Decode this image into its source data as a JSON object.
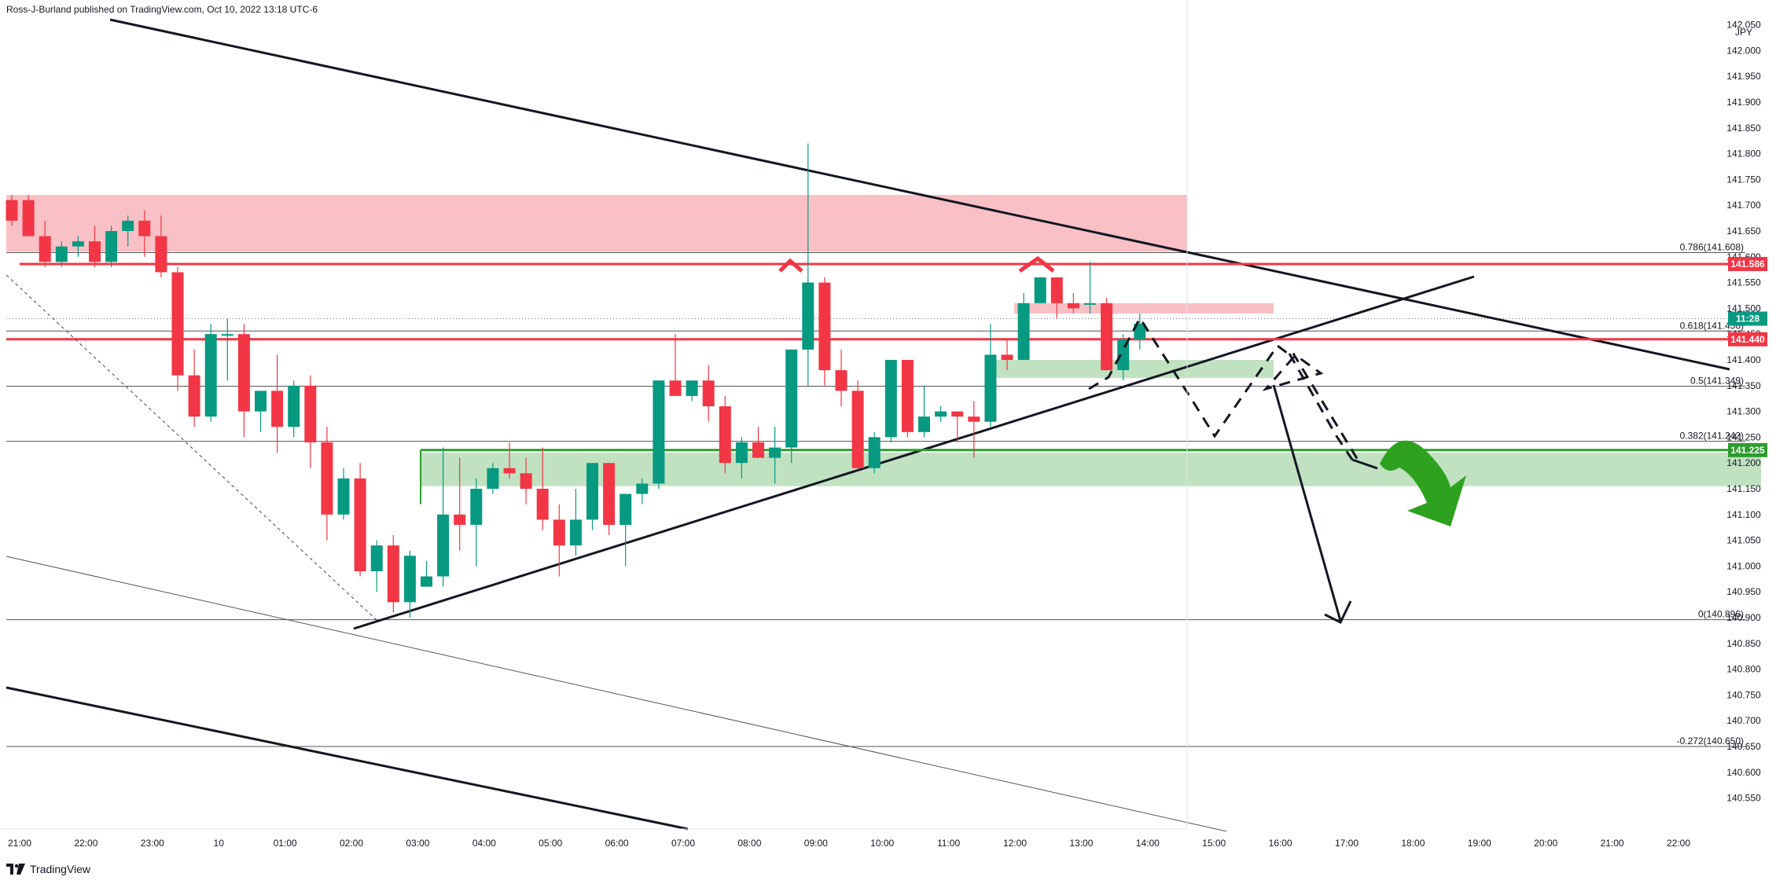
{
  "header": {
    "publisher_line": "Ross-J-Burland published on TradingView.com, Oct 10, 2022 13:18 UTC-6"
  },
  "footer": {
    "brand": "TradingView"
  },
  "chart_data": {
    "type": "candlestick",
    "currency": "JPY",
    "ylim": [
      140.5,
      142.08
    ],
    "y_ticks": [
      142.05,
      142.0,
      141.95,
      141.9,
      141.85,
      141.8,
      141.75,
      141.7,
      141.65,
      141.6,
      141.55,
      141.5,
      141.45,
      141.4,
      141.35,
      141.3,
      141.25,
      141.2,
      141.15,
      141.1,
      141.05,
      141.0,
      140.95,
      140.9,
      140.85,
      140.8,
      140.75,
      140.7,
      140.65,
      140.6,
      140.55
    ],
    "x_labels": [
      "21:00",
      "22:00",
      "23:00",
      "10",
      "01:00",
      "02:00",
      "03:00",
      "04:00",
      "05:00",
      "06:00",
      "07:00",
      "08:00",
      "09:00",
      "10:00",
      "11:00",
      "12:00",
      "13:00",
      "14:00",
      "15:00",
      "16:00",
      "17:00",
      "18:00",
      "19:00",
      "20:00",
      "21:00",
      "22:00"
    ],
    "candle_interval_minutes": 15,
    "candles": [
      [
        141.71,
        141.72,
        141.66,
        141.67
      ],
      [
        141.71,
        141.72,
        141.64,
        141.64
      ],
      [
        141.64,
        141.67,
        141.58,
        141.59
      ],
      [
        141.59,
        141.63,
        141.58,
        141.62
      ],
      [
        141.62,
        141.64,
        141.6,
        141.63
      ],
      [
        141.63,
        141.66,
        141.58,
        141.59
      ],
      [
        141.59,
        141.66,
        141.58,
        141.65
      ],
      [
        141.65,
        141.68,
        141.62,
        141.67
      ],
      [
        141.67,
        141.69,
        141.6,
        141.64
      ],
      [
        141.64,
        141.68,
        141.56,
        141.57
      ],
      [
        141.57,
        141.58,
        141.34,
        141.37
      ],
      [
        141.37,
        141.42,
        141.27,
        141.29
      ],
      [
        141.29,
        141.47,
        141.28,
        141.45
      ],
      [
        141.45,
        141.48,
        141.36,
        141.45
      ],
      [
        141.45,
        141.47,
        141.25,
        141.3
      ],
      [
        141.3,
        141.34,
        141.26,
        141.34
      ],
      [
        141.34,
        141.41,
        141.22,
        141.27
      ],
      [
        141.27,
        141.36,
        141.25,
        141.35
      ],
      [
        141.35,
        141.37,
        141.19,
        141.24
      ],
      [
        141.24,
        141.27,
        141.05,
        141.1
      ],
      [
        141.1,
        141.19,
        141.09,
        141.17
      ],
      [
        141.17,
        141.2,
        140.98,
        140.99
      ],
      [
        140.99,
        141.05,
        140.95,
        141.04
      ],
      [
        141.04,
        141.06,
        140.91,
        140.93
      ],
      [
        140.93,
        141.03,
        140.9,
        141.02
      ],
      [
        140.96,
        141.01,
        140.96,
        140.98
      ],
      [
        140.98,
        141.23,
        140.96,
        141.1
      ],
      [
        141.1,
        141.21,
        141.03,
        141.08
      ],
      [
        141.08,
        141.17,
        141.0,
        141.15
      ],
      [
        141.15,
        141.2,
        141.14,
        141.19
      ],
      [
        141.19,
        141.24,
        141.17,
        141.18
      ],
      [
        141.18,
        141.21,
        141.12,
        141.15
      ],
      [
        141.15,
        141.23,
        141.07,
        141.09
      ],
      [
        141.09,
        141.12,
        140.98,
        141.04
      ],
      [
        141.04,
        141.15,
        141.02,
        141.09
      ],
      [
        141.09,
        141.2,
        141.07,
        141.2
      ],
      [
        141.2,
        141.2,
        141.06,
        141.08
      ],
      [
        141.08,
        141.14,
        141.0,
        141.14
      ],
      [
        141.14,
        141.17,
        141.12,
        141.16
      ],
      [
        141.16,
        141.36,
        141.15,
        141.36
      ],
      [
        141.36,
        141.45,
        141.34,
        141.33
      ],
      [
        141.33,
        141.36,
        141.32,
        141.36
      ],
      [
        141.36,
        141.39,
        141.28,
        141.31
      ],
      [
        141.31,
        141.33,
        141.18,
        141.2
      ],
      [
        141.2,
        141.25,
        141.17,
        141.24
      ],
      [
        141.24,
        141.27,
        141.21,
        141.21
      ],
      [
        141.21,
        141.27,
        141.16,
        141.23
      ],
      [
        141.23,
        141.42,
        141.2,
        141.42
      ],
      [
        141.42,
        141.82,
        141.35,
        141.55
      ],
      [
        141.55,
        141.56,
        141.35,
        141.38
      ],
      [
        141.38,
        141.42,
        141.31,
        141.34
      ],
      [
        141.34,
        141.36,
        141.19,
        141.19
      ],
      [
        141.19,
        141.26,
        141.18,
        141.25
      ],
      [
        141.25,
        141.4,
        141.24,
        141.4
      ],
      [
        141.4,
        141.4,
        141.25,
        141.26
      ],
      [
        141.26,
        141.35,
        141.25,
        141.29
      ],
      [
        141.29,
        141.31,
        141.28,
        141.3
      ],
      [
        141.3,
        141.3,
        141.24,
        141.29
      ],
      [
        141.29,
        141.32,
        141.21,
        141.28
      ],
      [
        141.28,
        141.47,
        141.27,
        141.41
      ],
      [
        141.41,
        141.44,
        141.38,
        141.4
      ],
      [
        141.4,
        141.53,
        141.4,
        141.51
      ],
      [
        141.51,
        141.56,
        141.51,
        141.56
      ],
      [
        141.56,
        141.55,
        141.48,
        141.51
      ],
      [
        141.51,
        141.53,
        141.49,
        141.5
      ],
      [
        141.51,
        141.59,
        141.49,
        141.51
      ],
      [
        141.51,
        141.52,
        141.38,
        141.38
      ],
      [
        141.38,
        141.45,
        141.36,
        141.44
      ],
      [
        141.44,
        141.49,
        141.42,
        141.47
      ]
    ],
    "zones": [
      {
        "name": "supply",
        "color": "#f7a5ad",
        "y_top": 141.72,
        "y_bottom": 141.61
      },
      {
        "name": "demand",
        "color": "#a5d6a7",
        "y_top": 141.22,
        "y_bottom": 141.155
      },
      {
        "name": "minor-supply",
        "color": "#f7a5ad",
        "y_top": 141.51,
        "y_bottom": 141.49
      },
      {
        "name": "minor-demand",
        "color": "#a5d6a7",
        "y_top": 141.4,
        "y_bottom": 141.365
      }
    ],
    "fibonacci": [
      {
        "label": "0.786(141.608)",
        "value": 141.608
      },
      {
        "label": "0.618(141.456)",
        "value": 141.456
      },
      {
        "label": "0.5(141.349)",
        "value": 141.349
      },
      {
        "label": "0.382(141.242)",
        "value": 141.242
      },
      {
        "label": "0(140.896)",
        "value": 140.896
      },
      {
        "label": "-0.272(140.650)",
        "value": 140.65
      }
    ],
    "price_tags": [
      {
        "label": "141.586",
        "value": 141.586,
        "color": "#f23645"
      },
      {
        "label": "11:28",
        "value": 141.48,
        "color": "#089981"
      },
      {
        "label": "141.440",
        "value": 141.44,
        "color": "#f23645"
      },
      {
        "label": "141.225",
        "value": 141.225,
        "color": "#2e9c2e"
      }
    ],
    "colors": {
      "up": "#089981",
      "down": "#f23645",
      "line": "#131722",
      "green_line": "#2e9c2e",
      "red_line": "#f23645"
    }
  }
}
